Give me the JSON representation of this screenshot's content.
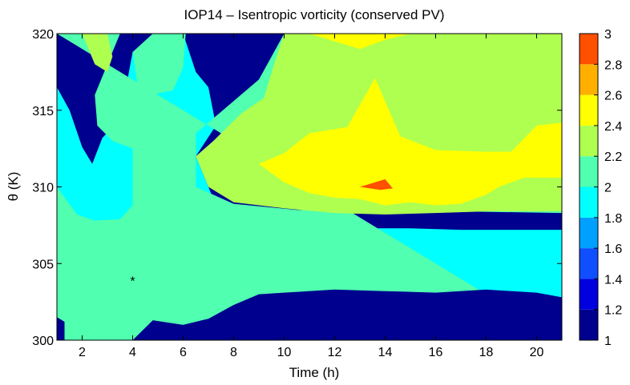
{
  "chart_data": {
    "type": "contourf",
    "title": "IOP14 – Isentropic vorticity (conserved PV)",
    "xlabel": "Time (h)",
    "ylabel": "θ (K)",
    "xlim": [
      1,
      21
    ],
    "ylim": [
      300,
      320
    ],
    "x_ticks": [
      2,
      4,
      6,
      8,
      10,
      12,
      14,
      16,
      18,
      20
    ],
    "y_ticks": [
      300,
      305,
      310,
      315,
      320
    ],
    "colorbar": {
      "levels": [
        1,
        1.2,
        1.4,
        1.6,
        1.8,
        2,
        2.2,
        2.4,
        2.6,
        2.8,
        3
      ],
      "tick_labels": [
        "1",
        "1.2",
        "1.4",
        "1.6",
        "1.8",
        "2",
        "2.2",
        "2.4",
        "2.6",
        "2.8",
        "3"
      ],
      "colors": [
        "#00008F",
        "#0000DF",
        "#0F4FFF",
        "#00A0FF",
        "#00FFFF",
        "#50FFAF",
        "#AFFF50",
        "#FFFF00",
        "#FFAF00",
        "#FF5000"
      ]
    },
    "grid": false,
    "marker": {
      "x": 4,
      "y": 303.9,
      "symbol": "*"
    },
    "regions": [
      {
        "level": 1.2,
        "points": [
          [
            1,
            304
          ],
          [
            2,
            304.6
          ],
          [
            3,
            304.8
          ],
          [
            4,
            306
          ],
          [
            5,
            305.9
          ],
          [
            6,
            305.6
          ],
          [
            7,
            305.2
          ],
          [
            8,
            305.2
          ],
          [
            9,
            305.5
          ],
          [
            10,
            305.5
          ],
          [
            11,
            305.4
          ],
          [
            12,
            305.3
          ],
          [
            13,
            305.3
          ],
          [
            14,
            305.1
          ],
          [
            15,
            305
          ],
          [
            16,
            305
          ],
          [
            17,
            304.9
          ],
          [
            18,
            304.9
          ],
          [
            19,
            304.9
          ],
          [
            20,
            304.9
          ],
          [
            21,
            305
          ],
          [
            21,
            300
          ],
          [
            1,
            300
          ]
        ]
      },
      {
        "level": 1.4,
        "points": [
          [
            1,
            305
          ],
          [
            2,
            305
          ],
          [
            3,
            304.9
          ],
          [
            4,
            306.2
          ],
          [
            5,
            306.0
          ],
          [
            6,
            305.8
          ],
          [
            7,
            305.5
          ],
          [
            8,
            305.5
          ],
          [
            9,
            305.7
          ],
          [
            10,
            305.7
          ],
          [
            11,
            305.6
          ],
          [
            12,
            305.5
          ],
          [
            13,
            305.5
          ],
          [
            14,
            305.3
          ],
          [
            15,
            305.2
          ],
          [
            16,
            305.2
          ],
          [
            17,
            305.1
          ],
          [
            18,
            305.1
          ],
          [
            19,
            305.1
          ],
          [
            20,
            305.1
          ],
          [
            21,
            305.2
          ],
          [
            21,
            300
          ],
          [
            1,
            300
          ]
        ]
      },
      {
        "level": 1.6,
        "points": [
          [
            1,
            307
          ],
          [
            2,
            306.8
          ],
          [
            3,
            306.7
          ],
          [
            4,
            306.8
          ],
          [
            5,
            306.7
          ],
          [
            6,
            306.6
          ],
          [
            7,
            306.5
          ],
          [
            8,
            306.4
          ],
          [
            9,
            306.6
          ],
          [
            10,
            306.7
          ],
          [
            11,
            306.7
          ],
          [
            12,
            306.6
          ],
          [
            13,
            306.6
          ],
          [
            14,
            306.5
          ],
          [
            15,
            306.4
          ],
          [
            16,
            306.4
          ],
          [
            17,
            306.3
          ],
          [
            18,
            306.3
          ],
          [
            19,
            306.3
          ],
          [
            20,
            306.3
          ],
          [
            21,
            306.4
          ],
          [
            21,
            300
          ],
          [
            1,
            300
          ]
        ]
      },
      {
        "level": 1.8,
        "points": [
          [
            1,
            316.5
          ],
          [
            1.5,
            315
          ],
          [
            2,
            312.6
          ],
          [
            2.4,
            311.5
          ],
          [
            2.8,
            313.2
          ],
          [
            3.5,
            314.4
          ],
          [
            4,
            318.8
          ],
          [
            4.5,
            319.2
          ],
          [
            5,
            320
          ],
          [
            6,
            320
          ],
          [
            6.5,
            317.5
          ],
          [
            7,
            316.5
          ],
          [
            7.3,
            314
          ],
          [
            6.5,
            312
          ],
          [
            7,
            310
          ],
          [
            7.5,
            308
          ],
          [
            9,
            307.2
          ],
          [
            11,
            307.2
          ],
          [
            13,
            307.3
          ],
          [
            15,
            307.3
          ],
          [
            17,
            307.2
          ],
          [
            19,
            307.2
          ],
          [
            21,
            307.2
          ],
          [
            21,
            300
          ],
          [
            1,
            300
          ]
        ]
      },
      {
        "level": 2.0,
        "points": [
          [
            1,
            320
          ],
          [
            3.5,
            320
          ],
          [
            3,
            318
          ],
          [
            2.5,
            316
          ],
          [
            2.6,
            314
          ],
          [
            3.2,
            313
          ],
          [
            4,
            312.5
          ],
          [
            4,
            308.8
          ],
          [
            3.5,
            307.9
          ],
          [
            2.5,
            307.8
          ],
          [
            1.8,
            308.2
          ],
          [
            1,
            310
          ],
          [
            1,
            300
          ],
          [
            21,
            300
          ],
          [
            21,
            308.3
          ],
          [
            17,
            308.4
          ],
          [
            13,
            308.4
          ],
          [
            10.5,
            308.5
          ],
          [
            8,
            308.9
          ],
          [
            6.5,
            310
          ],
          [
            6.5,
            313.5
          ],
          [
            8,
            315.6
          ],
          [
            9,
            317
          ],
          [
            10,
            320
          ],
          [
            21,
            320
          ],
          [
            21,
            300
          ]
        ]
      },
      {
        "level": 2.2,
        "points": [
          [
            2,
            320
          ],
          [
            3,
            320
          ],
          [
            3.2,
            318.5
          ],
          [
            3,
            317.5
          ],
          [
            2.5,
            318
          ],
          [
            2,
            320
          ]
        ]
      },
      {
        "level": 2.2,
        "points": [
          [
            6.3,
            320
          ],
          [
            10,
            320
          ],
          [
            9.6,
            318
          ],
          [
            9.2,
            315.8
          ],
          [
            8.3,
            314.8
          ],
          [
            7.2,
            313
          ],
          [
            6.5,
            312
          ],
          [
            7,
            310
          ],
          [
            8,
            309
          ],
          [
            10,
            308.6
          ],
          [
            12,
            308.3
          ],
          [
            14,
            308.2
          ],
          [
            16,
            308.3
          ],
          [
            18,
            308.4
          ],
          [
            21,
            308.4
          ],
          [
            21,
            320
          ],
          [
            6.3,
            320
          ]
        ]
      },
      {
        "level": 2.0,
        "points": [
          [
            4,
            318.8
          ],
          [
            4.8,
            320
          ],
          [
            6.1,
            320
          ],
          [
            6.0,
            317.8
          ],
          [
            5.6,
            316.3
          ],
          [
            5,
            316.1
          ],
          [
            4.3,
            315.5
          ],
          [
            4,
            318.8
          ]
        ]
      },
      {
        "level": 2.4,
        "points": [
          [
            11,
            320
          ],
          [
            12,
            319.5
          ],
          [
            13,
            319
          ],
          [
            14,
            319.6
          ],
          [
            15,
            320
          ],
          [
            11,
            320
          ]
        ]
      },
      {
        "level": 2.4,
        "points": [
          [
            9,
            311.5
          ],
          [
            10,
            312.2
          ],
          [
            11,
            313.5
          ],
          [
            12.5,
            313.9
          ],
          [
            13.6,
            317.1
          ],
          [
            14.6,
            313.3
          ],
          [
            16,
            312.4
          ],
          [
            18,
            312.3
          ],
          [
            19,
            312.3
          ],
          [
            20,
            314
          ],
          [
            21,
            314.2
          ],
          [
            21,
            310.6
          ],
          [
            20,
            310.6
          ],
          [
            19.5,
            310.6
          ],
          [
            18.5,
            310
          ],
          [
            18,
            309.5
          ],
          [
            17,
            308.9
          ],
          [
            16,
            308.8
          ],
          [
            15,
            309
          ],
          [
            14,
            308.8
          ],
          [
            13,
            309.2
          ],
          [
            12,
            309.3
          ],
          [
            11,
            309.6
          ],
          [
            10,
            310.3
          ],
          [
            9,
            311.5
          ]
        ]
      },
      {
        "level": 2.2,
        "points": [
          [
            15,
            316.5
          ],
          [
            15.2,
            318.4
          ],
          [
            16,
            318.8
          ],
          [
            17,
            319.3
          ],
          [
            18,
            319.7
          ],
          [
            19,
            319.3
          ],
          [
            20,
            319.1
          ],
          [
            21,
            318.5
          ],
          [
            21,
            315.4
          ],
          [
            20,
            315.3
          ],
          [
            19,
            315.2
          ],
          [
            18,
            315.1
          ],
          [
            17,
            315.5
          ],
          [
            16,
            316.1
          ],
          [
            15,
            316.5
          ]
        ]
      },
      {
        "level": 2.8,
        "points": [
          [
            13,
            310
          ],
          [
            13.6,
            310.3
          ],
          [
            14,
            310.5
          ],
          [
            14.3,
            309.9
          ],
          [
            13.8,
            309.8
          ],
          [
            13,
            310
          ]
        ]
      },
      {
        "level": 1.0,
        "points": [
          [
            4,
            300
          ],
          [
            4.8,
            301.3
          ],
          [
            6,
            301
          ],
          [
            7,
            301.4
          ],
          [
            8,
            302.3
          ],
          [
            9,
            303
          ],
          [
            10,
            303.1
          ],
          [
            12,
            303.3
          ],
          [
            14,
            303.2
          ],
          [
            16,
            303.1
          ],
          [
            18,
            303.3
          ],
          [
            20,
            303.1
          ],
          [
            21,
            302.8
          ],
          [
            21,
            300
          ],
          [
            4,
            300
          ]
        ]
      },
      {
        "level": 1.0,
        "points": [
          [
            1,
            300
          ],
          [
            1,
            301.5
          ],
          [
            1.3,
            301.2
          ],
          [
            1.3,
            300
          ],
          [
            1,
            300
          ]
        ]
      }
    ]
  }
}
